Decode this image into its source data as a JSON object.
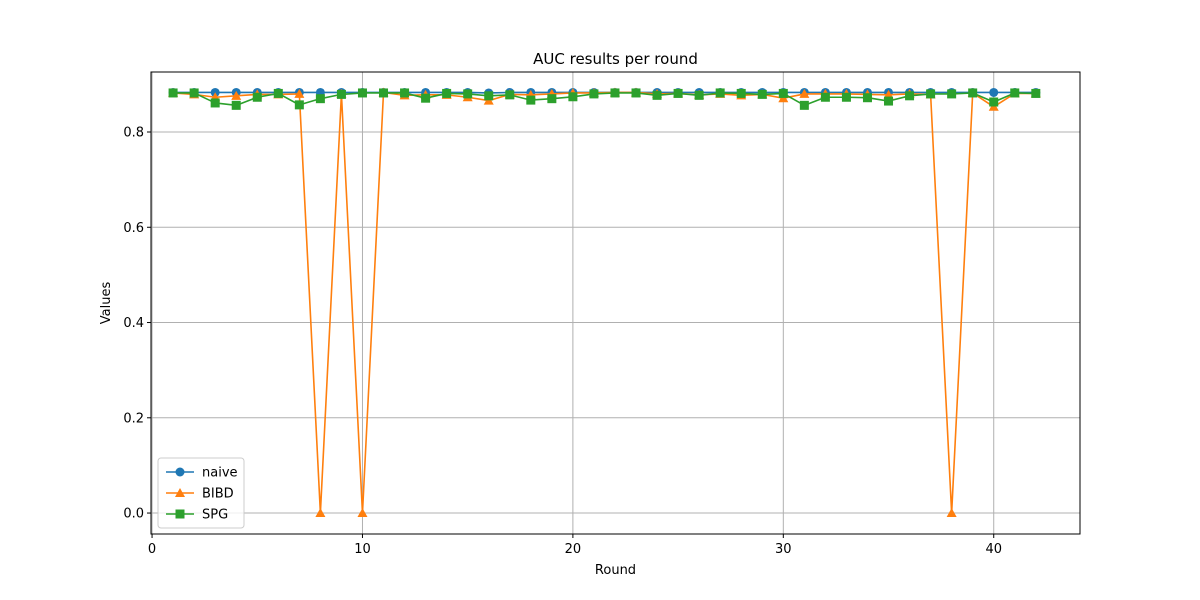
{
  "chart_data": {
    "type": "line",
    "title": "AUC results per round",
    "xlabel": "Round",
    "ylabel": "Values",
    "xlim": [
      -0.05,
      44.1
    ],
    "ylim": [
      -0.044,
      0.926
    ],
    "xticks": [
      0,
      10,
      20,
      30,
      40
    ],
    "yticks": [
      0.0,
      0.2,
      0.4,
      0.6,
      0.8
    ],
    "xtick_labels": [
      "0",
      "10",
      "20",
      "30",
      "40"
    ],
    "ytick_labels": [
      "0.0",
      "0.2",
      "0.4",
      "0.6",
      "0.8"
    ],
    "grid": true,
    "legend_position": "lower-left",
    "x": [
      1,
      2,
      3,
      4,
      5,
      6,
      7,
      8,
      9,
      10,
      11,
      12,
      13,
      14,
      15,
      16,
      17,
      18,
      19,
      20,
      21,
      22,
      23,
      24,
      25,
      26,
      27,
      28,
      29,
      30,
      31,
      32,
      33,
      34,
      35,
      36,
      37,
      38,
      39,
      40,
      41,
      42
    ],
    "series": [
      {
        "name": "naive",
        "color": "#1f77b4",
        "marker": "circle",
        "values": [
          0.883,
          0.883,
          0.883,
          0.883,
          0.883,
          0.883,
          0.883,
          0.883,
          0.883,
          0.883,
          0.883,
          0.883,
          0.883,
          0.883,
          0.883,
          0.882,
          0.883,
          0.883,
          0.883,
          0.883,
          0.883,
          0.883,
          0.883,
          0.883,
          0.883,
          0.883,
          0.883,
          0.883,
          0.883,
          0.883,
          0.883,
          0.883,
          0.883,
          0.883,
          0.883,
          0.883,
          0.883,
          0.883,
          0.883,
          0.883,
          0.883,
          0.883
        ]
      },
      {
        "name": "BIBD",
        "color": "#ff7f0e",
        "marker": "triangle",
        "values": [
          0.882,
          0.879,
          0.873,
          0.876,
          0.879,
          0.879,
          0.88,
          0.0,
          0.88,
          0.0,
          0.883,
          0.877,
          0.878,
          0.878,
          0.873,
          0.866,
          0.879,
          0.878,
          0.88,
          0.882,
          0.882,
          0.883,
          0.883,
          0.88,
          0.881,
          0.878,
          0.88,
          0.877,
          0.879,
          0.871,
          0.88,
          0.88,
          0.88,
          0.879,
          0.878,
          0.88,
          0.879,
          0.0,
          0.882,
          0.853,
          0.881,
          0.881
        ]
      },
      {
        "name": "SPG",
        "color": "#2ca02c",
        "marker": "square",
        "values": [
          0.882,
          0.882,
          0.861,
          0.856,
          0.873,
          0.881,
          0.857,
          0.87,
          0.879,
          0.882,
          0.882,
          0.882,
          0.871,
          0.881,
          0.88,
          0.876,
          0.878,
          0.867,
          0.87,
          0.874,
          0.88,
          0.882,
          0.882,
          0.877,
          0.881,
          0.877,
          0.882,
          0.881,
          0.879,
          0.881,
          0.856,
          0.873,
          0.873,
          0.872,
          0.865,
          0.876,
          0.88,
          0.88,
          0.882,
          0.863,
          0.882,
          0.881
        ]
      }
    ]
  }
}
